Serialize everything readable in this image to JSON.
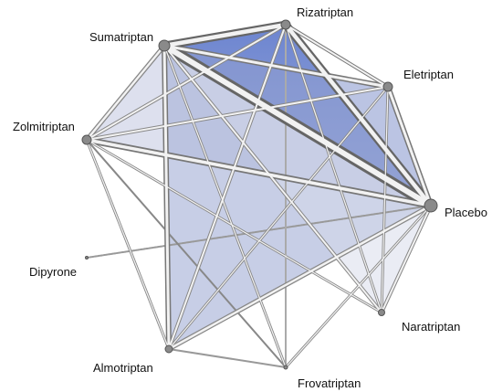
{
  "network": {
    "nodes": [
      {
        "id": "sumatriptan",
        "label": "Sumatriptan"
      },
      {
        "id": "rizatriptan",
        "label": "Rizatriptan"
      },
      {
        "id": "eletriptan",
        "label": "Eletriptan"
      },
      {
        "id": "zolmitriptan",
        "label": "Zolmitriptan"
      },
      {
        "id": "placebo",
        "label": "Placebo"
      },
      {
        "id": "dipyrone",
        "label": "Dipyrone"
      },
      {
        "id": "naratriptan",
        "label": "Naratriptan"
      },
      {
        "id": "almotriptan",
        "label": "Almotriptan"
      },
      {
        "id": "frovatriptan",
        "label": "Frovatriptan"
      }
    ],
    "edge_color": "#cccccc",
    "node_color": "#808080",
    "face_color": "#1f3f9f"
  }
}
